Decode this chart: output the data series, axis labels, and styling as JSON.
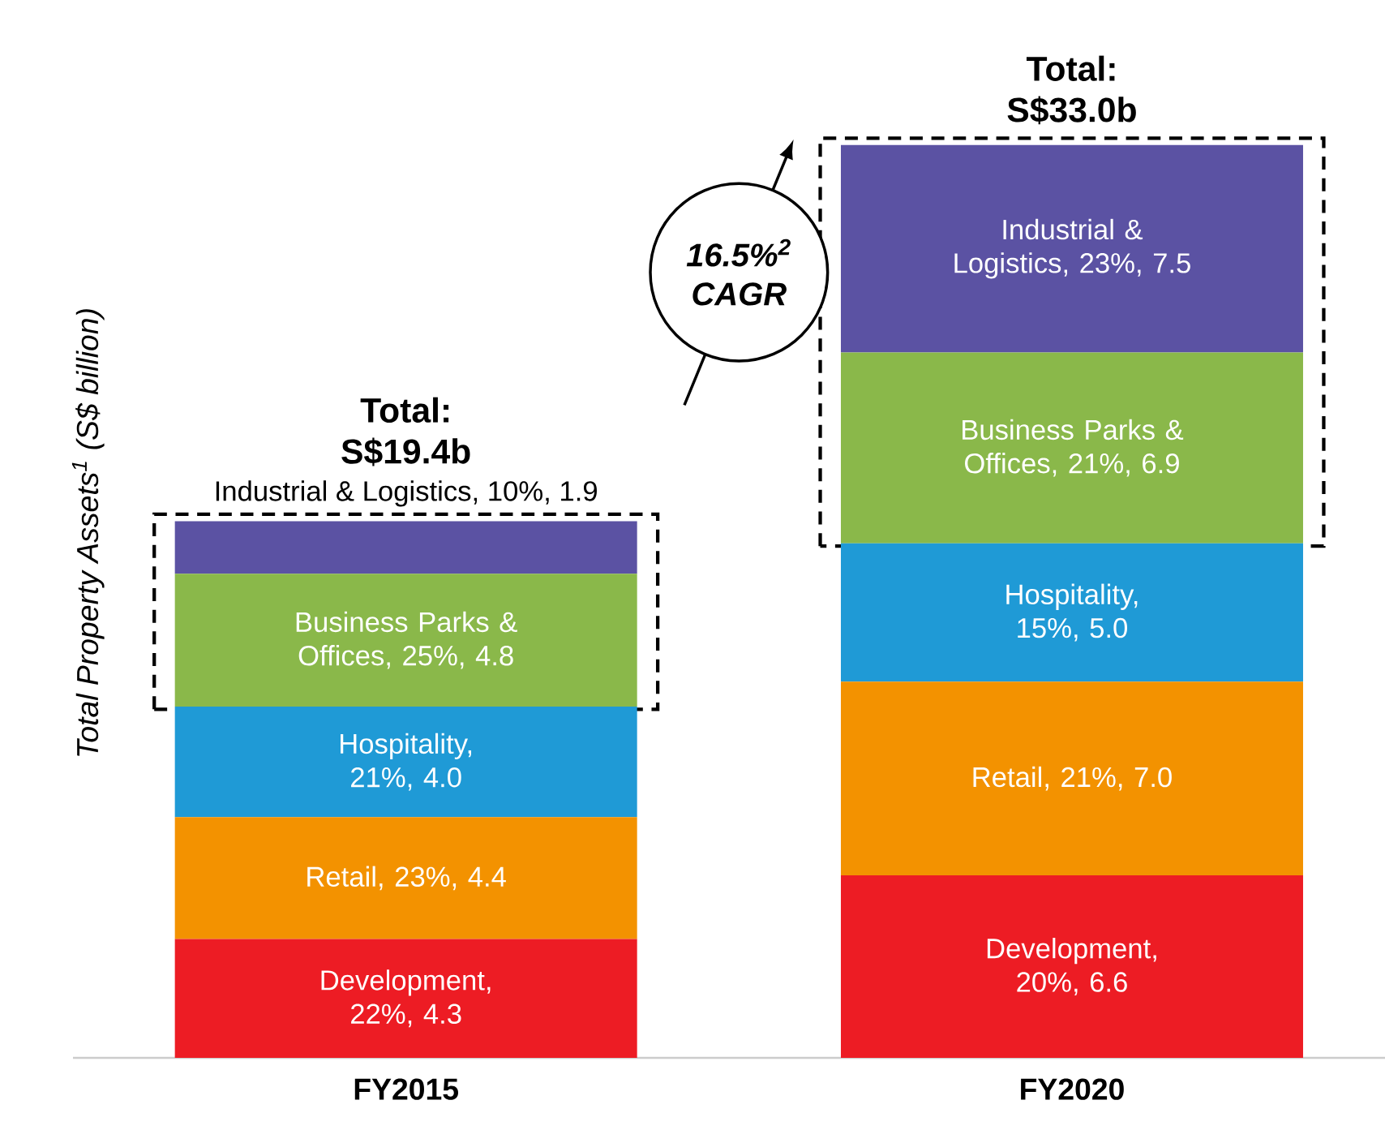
{
  "chart_data": {
    "type": "bar",
    "stacked": true,
    "ylabel": "Total Property Assets$^{1}$ (S$ billion)",
    "categories": [
      "FY2015",
      "FY2020"
    ],
    "series": [
      {
        "color": "#ed1c24",
        "values": [
          4.3,
          6.6
        ],
        "value_labels": [
          "Development, 22%, 4.3",
          "Development, 20%, 6.6"
        ]
      },
      {
        "color": "#f39200",
        "values": [
          4.4,
          7.0
        ],
        "value_labels": [
          "Retail, 23%, 4.4",
          "Retail, 21%, 7.0"
        ]
      },
      {
        "color": "#1f9ad6",
        "values": [
          4.0,
          5.0
        ],
        "value_labels": [
          "Hospitality, 21%, 4.0",
          "Hospitality, 15%, 5.0"
        ]
      },
      {
        "color": "#8ab84a",
        "values": [
          4.8,
          6.9
        ],
        "value_labels": [
          "Business Parks & Offices, 25%, 4.8",
          "Business Parks & Offices, 21%, 6.9"
        ]
      },
      {
        "color": "#5b52a3",
        "values": [
          1.9,
          7.5
        ],
        "value_labels": [
          "Industrial & Logistics, 10%, 1.9",
          "Industrial & Logistics, 23%, 7.5"
        ]
      }
    ],
    "totals": [
      "Total: S$19.4b",
      "Total: S$33.0b"
    ],
    "annotations": [
      "16.5%$^{2}$ CAGR"
    ]
  }
}
